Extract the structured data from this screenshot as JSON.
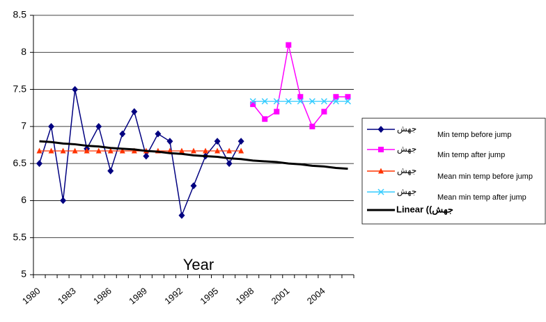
{
  "chart_data": {
    "type": "line",
    "x_label": "Year",
    "categories": [
      "1980",
      null,
      null,
      "1983",
      null,
      null,
      "1986",
      null,
      null,
      "1989",
      null,
      null,
      "1992",
      null,
      null,
      "1995",
      null,
      null,
      "1998",
      null,
      null,
      "2001",
      null,
      null,
      "2004",
      null,
      null
    ],
    "ylim": [
      5,
      8.5
    ],
    "yticks": [
      5,
      5.5,
      6,
      6.5,
      7,
      7.5,
      8,
      8.5
    ],
    "grid": true,
    "series": [
      {
        "name": "Min temp before jump",
        "marker_label": "جهش",
        "color": "#000080",
        "marker": "diamond",
        "values": [
          6.5,
          7.0,
          6.0,
          7.5,
          6.7,
          7.0,
          6.4,
          6.9,
          7.2,
          6.6,
          6.9,
          6.8,
          5.8,
          6.2,
          6.6,
          6.8,
          6.5,
          6.8,
          null,
          null,
          null,
          null,
          null,
          null,
          null,
          null,
          null
        ]
      },
      {
        "name": "Min temp after jump",
        "marker_label": "جهش",
        "color": "#ff00ff",
        "marker": "square",
        "values": [
          null,
          null,
          null,
          null,
          null,
          null,
          null,
          null,
          null,
          null,
          null,
          null,
          null,
          null,
          null,
          null,
          null,
          null,
          7.3,
          7.1,
          7.2,
          8.1,
          7.4,
          7.0,
          7.2,
          7.4,
          7.4
        ]
      },
      {
        "name": "Mean min temp before jump",
        "marker_label": "جهش",
        "color": "#ff3300",
        "marker": "triangle",
        "values": [
          6.67,
          6.67,
          6.67,
          6.67,
          6.67,
          6.67,
          6.67,
          6.67,
          6.67,
          6.67,
          6.67,
          6.67,
          6.67,
          6.67,
          6.67,
          6.67,
          6.67,
          6.67,
          null,
          null,
          null,
          null,
          null,
          null,
          null,
          null,
          null
        ]
      },
      {
        "name": "Mean min temp after jump",
        "marker_label": "جهش",
        "color": "#33ccff",
        "marker": "x",
        "values": [
          null,
          null,
          null,
          null,
          null,
          null,
          null,
          null,
          null,
          null,
          null,
          null,
          null,
          null,
          null,
          null,
          null,
          null,
          7.34,
          7.34,
          7.34,
          7.34,
          7.34,
          7.34,
          7.34,
          7.34,
          7.34
        ]
      },
      {
        "name": "Linear ((جهش",
        "color": "#000000",
        "marker": "none",
        "values": [
          6.8,
          6.79,
          6.77,
          6.76,
          6.74,
          6.73,
          6.71,
          6.7,
          6.69,
          6.67,
          6.66,
          6.64,
          6.63,
          6.61,
          6.6,
          6.59,
          6.57,
          6.56,
          6.54,
          6.53,
          6.52,
          6.5,
          6.49,
          6.47,
          6.46,
          6.44,
          6.43
        ]
      }
    ]
  }
}
